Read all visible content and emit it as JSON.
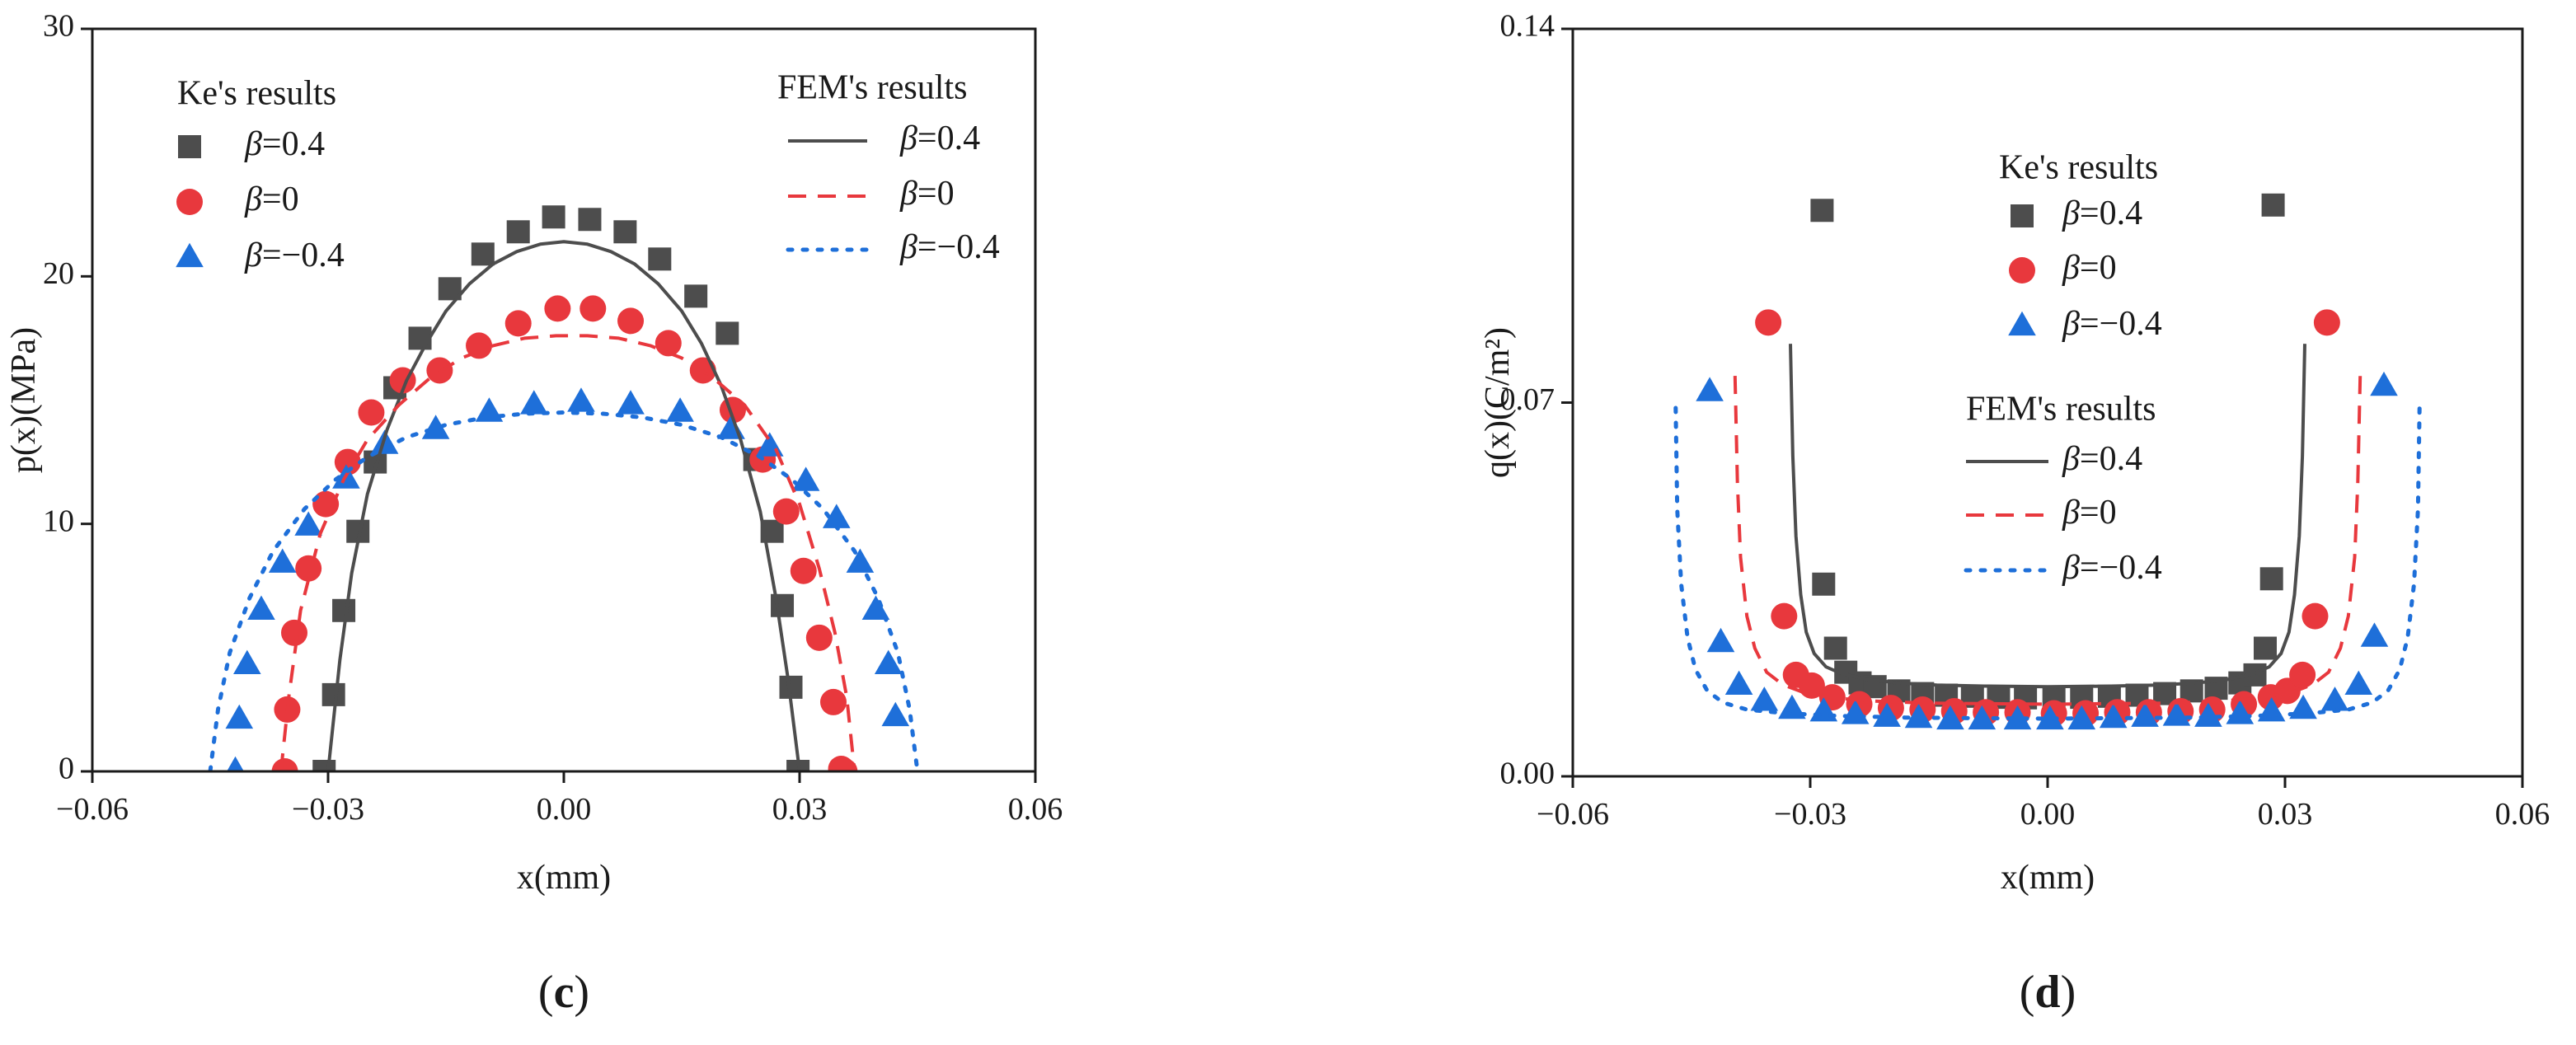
{
  "chart_data": [
    {
      "type": "scatter",
      "panel_label": "c",
      "xlabel": "x(mm)",
      "ylabel": "p(x)(MPa)",
      "xlim": [
        -0.06,
        0.06
      ],
      "ylim": [
        0,
        30
      ],
      "xticks": [
        -0.06,
        -0.03,
        0.0,
        0.03,
        0.06
      ],
      "xtick_labels": [
        "−0.06",
        "−0.03",
        "0.00",
        "0.03",
        "0.06"
      ],
      "yticks": [
        0,
        10,
        20,
        30
      ],
      "ytick_labels": [
        "0",
        "10",
        "20",
        "30"
      ],
      "grid": false,
      "legend_groups": [
        {
          "title": "Ke's results",
          "entries": [
            "β=0.4",
            "β=0",
            "β=−0.4"
          ],
          "position": "top-left"
        },
        {
          "title": "FEM's results",
          "entries": [
            "β=0.4",
            "β=0",
            "β=−0.4"
          ],
          "position": "top-right"
        }
      ],
      "colors": {
        "beta_0.4": "#4d4d4d",
        "beta_0": "#e8383d",
        "beta_neg0.4": "#1e6fd9"
      },
      "markers": {
        "beta_0.4": "square",
        "beta_0": "circle",
        "beta_neg0.4": "triangle"
      },
      "lines": {
        "beta_0.4": "solid",
        "beta_0": "dashed",
        "beta_neg0.4": "dotted"
      },
      "series": [
        {
          "name": "Ke's β=0.4",
          "kind": "markers",
          "key": "beta_0.4",
          "x": [
            -0.0305,
            -0.0293,
            -0.028,
            -0.0262,
            -0.024,
            -0.0215,
            -0.0183,
            -0.0145,
            -0.0103,
            -0.0058,
            -0.0013,
            0.0033,
            0.0078,
            0.0122,
            0.0168,
            0.0208,
            0.0243,
            0.0265,
            0.0278,
            0.0289,
            0.0298
          ],
          "y": [
            0.0,
            3.1,
            6.5,
            9.7,
            12.5,
            15.5,
            17.5,
            19.5,
            20.9,
            21.8,
            22.4,
            22.3,
            21.8,
            20.7,
            19.2,
            17.7,
            12.6,
            9.7,
            6.7,
            3.4,
            0.0
          ]
        },
        {
          "name": "Ke's β=0",
          "kind": "markers",
          "key": "beta_0",
          "x": [
            -0.0355,
            -0.0352,
            -0.0343,
            -0.0325,
            -0.0303,
            -0.0275,
            -0.0245,
            -0.0205,
            -0.0158,
            -0.0108,
            -0.0058,
            -0.0008,
            0.0037,
            0.0085,
            0.0133,
            0.0177,
            0.0215,
            0.0253,
            0.0283,
            0.0305,
            0.0325,
            0.0343,
            0.0353,
            0.0357
          ],
          "y": [
            0.0,
            2.5,
            5.6,
            8.2,
            10.8,
            12.5,
            14.5,
            15.8,
            16.2,
            17.2,
            18.1,
            18.7,
            18.7,
            18.2,
            17.3,
            16.2,
            14.6,
            12.6,
            10.5,
            8.1,
            5.4,
            2.8,
            0.1,
            0.0
          ]
        },
        {
          "name": "Ke's β=−0.4",
          "kind": "markers",
          "key": "beta_neg0.4",
          "x": [
            -0.0418,
            -0.0413,
            -0.0403,
            -0.0385,
            -0.0358,
            -0.0325,
            -0.0277,
            -0.0228,
            -0.0163,
            -0.0095,
            -0.0038,
            0.0022,
            0.0085,
            0.0148,
            0.0213,
            0.0262,
            0.0308,
            0.0347,
            0.0377,
            0.0397,
            0.0413,
            0.0422
          ],
          "y": [
            0.0,
            2.1,
            4.3,
            6.5,
            8.4,
            9.9,
            11.8,
            13.2,
            13.8,
            14.5,
            14.8,
            14.9,
            14.8,
            14.5,
            13.8,
            13.1,
            11.7,
            10.2,
            8.4,
            6.5,
            4.3,
            2.2
          ]
        },
        {
          "name": "FEM β=0.4",
          "kind": "line",
          "key": "beta_0.4",
          "x": [
            -0.03,
            -0.0285,
            -0.027,
            -0.025,
            -0.0225,
            -0.02,
            -0.0175,
            -0.015,
            -0.012,
            -0.009,
            -0.006,
            -0.003,
            0.0,
            0.003,
            0.006,
            0.009,
            0.012,
            0.015,
            0.0175,
            0.02,
            0.0225,
            0.025,
            0.027,
            0.0285,
            0.03
          ],
          "y": [
            0.0,
            4.5,
            8.0,
            11.2,
            13.8,
            15.8,
            17.3,
            18.6,
            19.7,
            20.5,
            21.0,
            21.3,
            21.4,
            21.3,
            21.0,
            20.5,
            19.7,
            18.6,
            17.3,
            15.6,
            13.4,
            10.5,
            7.0,
            3.8,
            0.0
          ]
        },
        {
          "name": "FEM β=0",
          "kind": "line",
          "key": "beta_0",
          "x": [
            -0.036,
            -0.035,
            -0.0335,
            -0.031,
            -0.028,
            -0.025,
            -0.021,
            -0.017,
            -0.013,
            -0.009,
            -0.005,
            -0.001,
            0.003,
            0.007,
            0.011,
            0.015,
            0.019,
            0.023,
            0.027,
            0.03,
            0.0325,
            0.0345,
            0.036,
            0.037
          ],
          "y": [
            0.0,
            3.0,
            6.5,
            9.6,
            11.8,
            13.4,
            14.8,
            15.9,
            16.7,
            17.2,
            17.5,
            17.6,
            17.6,
            17.5,
            17.2,
            16.7,
            15.9,
            14.8,
            13.0,
            10.8,
            8.2,
            5.6,
            3.0,
            0.0
          ]
        },
        {
          "name": "FEM β=−0.4",
          "kind": "line",
          "key": "beta_neg0.4",
          "x": [
            -0.045,
            -0.044,
            -0.0425,
            -0.04,
            -0.037,
            -0.033,
            -0.029,
            -0.025,
            -0.02,
            -0.015,
            -0.01,
            -0.005,
            0.0,
            0.005,
            0.01,
            0.015,
            0.02,
            0.025,
            0.029,
            0.033,
            0.037,
            0.04,
            0.0425,
            0.044,
            0.045
          ],
          "y": [
            0.0,
            2.5,
            4.8,
            7.0,
            8.9,
            10.6,
            11.8,
            12.7,
            13.5,
            14.0,
            14.3,
            14.45,
            14.5,
            14.45,
            14.3,
            14.0,
            13.5,
            12.7,
            11.8,
            10.6,
            8.9,
            7.0,
            4.8,
            2.5,
            0.0
          ]
        }
      ]
    },
    {
      "type": "scatter",
      "panel_label": "d",
      "xlabel": "x(mm)",
      "ylabel": "q(x)(C/m²)",
      "xlim": [
        -0.06,
        0.06
      ],
      "ylim": [
        0,
        0.14
      ],
      "xticks": [
        -0.06,
        -0.03,
        0.0,
        0.03,
        0.06
      ],
      "xtick_labels": [
        "−0.06",
        "−0.03",
        "0.00",
        "0.03",
        "0.06"
      ],
      "yticks": [
        0,
        0.07,
        0.14
      ],
      "ytick_labels": [
        "0.00",
        "0.07",
        "0.14"
      ],
      "grid": false,
      "legend_groups": [
        {
          "title": "Ke's results",
          "entries": [
            "β=0.4",
            "β=0",
            "β=−0.4"
          ],
          "position": "upper-center"
        },
        {
          "title": "FEM's results",
          "entries": [
            "β=0.4",
            "β=0",
            "β=−0.4"
          ],
          "position": "center"
        }
      ],
      "colors": {
        "beta_0.4": "#4d4d4d",
        "beta_0": "#e8383d",
        "beta_neg0.4": "#1e6fd9"
      },
      "markers": {
        "beta_0.4": "square",
        "beta_0": "circle",
        "beta_neg0.4": "triangle"
      },
      "lines": {
        "beta_0.4": "solid",
        "beta_0": "dashed",
        "beta_neg0.4": "dotted"
      },
      "series": [
        {
          "name": "Ke's β=0.4",
          "kind": "markers",
          "key": "beta_0.4",
          "x": [
            -0.0285,
            -0.0283,
            -0.0268,
            -0.0255,
            -0.0237,
            -0.0218,
            -0.0188,
            -0.0158,
            -0.0128,
            -0.0095,
            -0.0062,
            -0.0028,
            0.0008,
            0.0043,
            0.0078,
            0.0113,
            0.0148,
            0.0182,
            0.0213,
            0.0243,
            0.0262,
            0.0275,
            0.0283,
            0.0285
          ],
          "y": [
            0.106,
            0.036,
            0.024,
            0.0195,
            0.0175,
            0.0168,
            0.016,
            0.0155,
            0.0152,
            0.015,
            0.0148,
            0.0147,
            0.0147,
            0.0148,
            0.015,
            0.0152,
            0.0155,
            0.016,
            0.0165,
            0.0175,
            0.019,
            0.024,
            0.037,
            0.107
          ]
        },
        {
          "name": "Ke's β=0",
          "kind": "markers",
          "key": "beta_0",
          "x": [
            -0.0353,
            -0.0333,
            -0.0318,
            -0.0298,
            -0.0272,
            -0.0238,
            -0.0198,
            -0.0158,
            -0.0118,
            -0.0078,
            -0.0038,
            0.0008,
            0.0048,
            0.0088,
            0.0128,
            0.0168,
            0.0208,
            0.0248,
            0.0282,
            0.0303,
            0.0322,
            0.0338,
            0.0353
          ],
          "y": [
            0.085,
            0.03,
            0.019,
            0.017,
            0.0148,
            0.0135,
            0.0128,
            0.0125,
            0.0122,
            0.012,
            0.012,
            0.0118,
            0.0118,
            0.012,
            0.012,
            0.0122,
            0.0125,
            0.0135,
            0.0148,
            0.016,
            0.019,
            0.03,
            0.085
          ]
        },
        {
          "name": "Ke's β=−0.4",
          "kind": "markers",
          "key": "beta_neg0.4",
          "x": [
            -0.0427,
            -0.0413,
            -0.039,
            -0.0358,
            -0.0323,
            -0.0283,
            -0.0243,
            -0.0203,
            -0.0163,
            -0.0123,
            -0.0083,
            -0.0038,
            0.0003,
            0.0043,
            0.0083,
            0.0123,
            0.0163,
            0.0203,
            0.0243,
            0.0283,
            0.0323,
            0.0363,
            0.0393,
            0.0413,
            0.0425
          ],
          "y": [
            0.072,
            0.025,
            0.017,
            0.014,
            0.0125,
            0.012,
            0.0115,
            0.011,
            0.0108,
            0.0105,
            0.0105,
            0.0105,
            0.0105,
            0.0105,
            0.0108,
            0.011,
            0.0112,
            0.011,
            0.0115,
            0.012,
            0.0125,
            0.014,
            0.017,
            0.026,
            0.073
          ]
        },
        {
          "name": "FEM β=0.4",
          "kind": "line",
          "key": "beta_0.4",
          "x": [
            -0.0325,
            -0.0322,
            -0.0318,
            -0.0312,
            -0.0305,
            -0.0295,
            -0.028,
            -0.026,
            -0.023,
            -0.019,
            -0.014,
            -0.008,
            0.0,
            0.008,
            0.014,
            0.019,
            0.023,
            0.026,
            0.028,
            0.0295,
            0.0305,
            0.0312,
            0.0318,
            0.0322,
            0.0325
          ],
          "y": [
            0.081,
            0.06,
            0.045,
            0.034,
            0.027,
            0.023,
            0.0205,
            0.0192,
            0.0182,
            0.0175,
            0.0171,
            0.0169,
            0.0168,
            0.0169,
            0.0171,
            0.0175,
            0.0182,
            0.0192,
            0.0205,
            0.023,
            0.027,
            0.034,
            0.045,
            0.06,
            0.081
          ]
        },
        {
          "name": "FEM β=0",
          "kind": "line",
          "key": "beta_0",
          "x": [
            -0.0395,
            -0.0392,
            -0.0388,
            -0.038,
            -0.037,
            -0.0355,
            -0.0335,
            -0.031,
            -0.027,
            -0.022,
            -0.015,
            -0.007,
            0.0,
            0.007,
            0.015,
            0.022,
            0.027,
            0.031,
            0.0335,
            0.0355,
            0.037,
            0.038,
            0.0388,
            0.0392,
            0.0395
          ],
          "y": [
            0.075,
            0.055,
            0.041,
            0.03,
            0.024,
            0.0195,
            0.0172,
            0.0158,
            0.0147,
            0.0141,
            0.0137,
            0.0136,
            0.0135,
            0.0136,
            0.0137,
            0.0141,
            0.0147,
            0.0158,
            0.0172,
            0.0195,
            0.024,
            0.03,
            0.041,
            0.055,
            0.075
          ]
        },
        {
          "name": "FEM β=−0.4",
          "kind": "line",
          "key": "beta_neg0.4",
          "x": [
            -0.047,
            -0.0468,
            -0.0463,
            -0.0455,
            -0.0445,
            -0.043,
            -0.041,
            -0.038,
            -0.033,
            -0.026,
            -0.018,
            -0.009,
            0.0,
            0.009,
            0.018,
            0.026,
            0.033,
            0.038,
            0.041,
            0.043,
            0.0445,
            0.0455,
            0.0463,
            0.0468,
            0.047
          ],
          "y": [
            0.069,
            0.05,
            0.036,
            0.026,
            0.02,
            0.016,
            0.0138,
            0.0125,
            0.0118,
            0.0113,
            0.011,
            0.0109,
            0.0108,
            0.0109,
            0.011,
            0.0113,
            0.0118,
            0.0125,
            0.0138,
            0.016,
            0.02,
            0.026,
            0.036,
            0.05,
            0.069
          ]
        }
      ]
    }
  ]
}
